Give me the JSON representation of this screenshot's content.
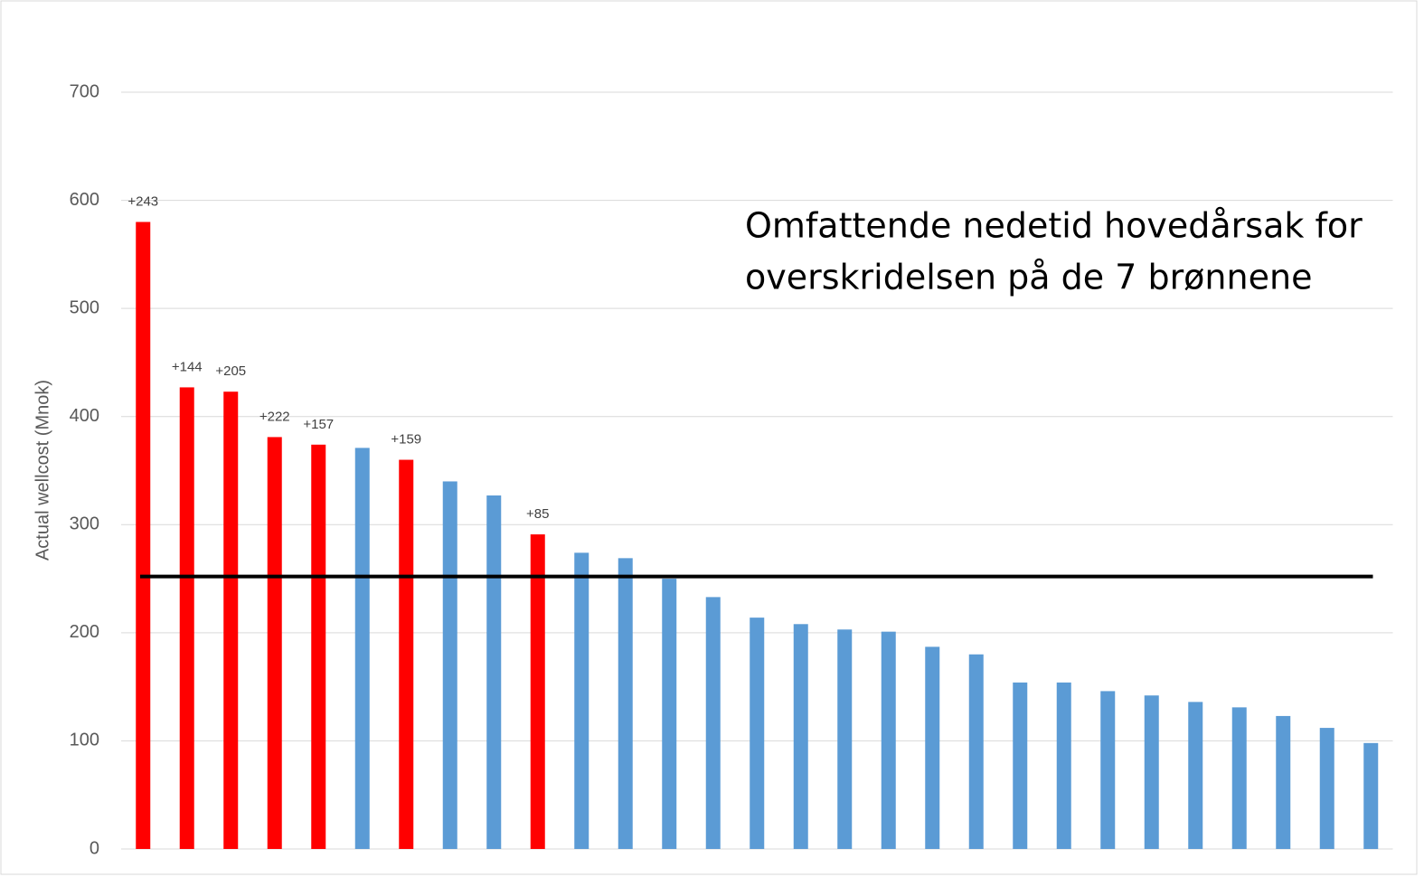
{
  "chart_data": {
    "type": "bar",
    "y_label": "Actual wellcost (Mnok)",
    "annotation": [
      "Omfattende nedetid hovedårsak for",
      "overskridelsen på de 7 brønnene"
    ],
    "values": [
      580,
      427,
      423,
      381,
      374,
      371,
      360,
      340,
      327,
      291,
      274,
      269,
      250,
      233,
      214,
      208,
      203,
      201,
      187,
      180,
      154,
      154,
      146,
      142,
      136,
      131,
      123,
      112,
      98
    ],
    "colors": [
      "#ff0000",
      "#ff0000",
      "#ff0000",
      "#ff0000",
      "#ff0000",
      "#5b9bd5",
      "#ff0000",
      "#5b9bd5",
      "#5b9bd5",
      "#ff0000",
      "#5b9bd5",
      "#5b9bd5",
      "#5b9bd5",
      "#5b9bd5",
      "#5b9bd5",
      "#5b9bd5",
      "#5b9bd5",
      "#5b9bd5",
      "#5b9bd5",
      "#5b9bd5",
      "#5b9bd5",
      "#5b9bd5",
      "#5b9bd5",
      "#5b9bd5",
      "#5b9bd5",
      "#5b9bd5",
      "#5b9bd5",
      "#5b9bd5",
      "#5b9bd5"
    ],
    "overrun_labels": [
      "+243",
      "+144",
      "+205",
      "+222",
      "+157",
      null,
      "+159",
      null,
      null,
      "+85",
      null,
      null,
      null,
      null,
      null,
      null,
      null,
      null,
      null,
      null,
      null,
      null,
      null,
      null,
      null,
      null,
      null,
      null,
      null
    ],
    "reference_line": 252,
    "reference_color": "#000000",
    "ylim": [
      0,
      700
    ],
    "yticks": [
      0,
      100,
      200,
      300,
      400,
      500,
      600,
      700
    ],
    "grid": true
  }
}
